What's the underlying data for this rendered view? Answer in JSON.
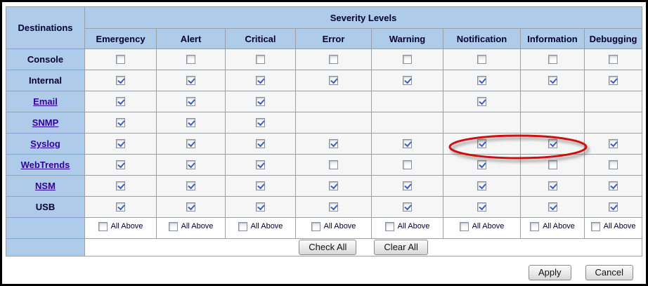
{
  "colors": {
    "header_bg": "#aecbe9",
    "cell_bg": "#f6f6f6",
    "grid": "#9aa0a6",
    "label_text": "#000033",
    "link_text": "#330099",
    "checkmark": "#3b5bbf",
    "annotation_red": "#cc1111"
  },
  "table": {
    "destinations_header": "Destinations",
    "severity_header": "Severity Levels",
    "severity_columns": [
      "Emergency",
      "Alert",
      "Critical",
      "Error",
      "Warning",
      "Notification",
      "Information",
      "Debugging"
    ],
    "rows": [
      {
        "label": "Console",
        "is_link": false,
        "cells": [
          "unchecked",
          "unchecked",
          "unchecked",
          "unchecked",
          "unchecked",
          "unchecked",
          "unchecked",
          "unchecked"
        ]
      },
      {
        "label": "Internal",
        "is_link": false,
        "cells": [
          "checked",
          "checked",
          "checked",
          "checked",
          "checked",
          "checked",
          "checked",
          "checked"
        ]
      },
      {
        "label": "Email",
        "is_link": true,
        "cells": [
          "checked",
          "checked",
          "checked",
          "empty",
          "empty",
          "checked",
          "empty",
          "empty"
        ]
      },
      {
        "label": "SNMP",
        "is_link": true,
        "cells": [
          "checked",
          "checked",
          "checked",
          "empty",
          "empty",
          "empty",
          "empty",
          "empty"
        ]
      },
      {
        "label": "Syslog",
        "is_link": true,
        "cells": [
          "checked",
          "checked",
          "checked",
          "checked",
          "checked",
          "checked",
          "checked",
          "checked"
        ]
      },
      {
        "label": "WebTrends",
        "is_link": true,
        "cells": [
          "checked",
          "checked",
          "checked",
          "unchecked",
          "unchecked",
          "checked",
          "unchecked",
          "unchecked"
        ]
      },
      {
        "label": "NSM",
        "is_link": true,
        "cells": [
          "checked",
          "checked",
          "checked",
          "checked",
          "checked",
          "checked",
          "checked",
          "checked"
        ]
      },
      {
        "label": "USB",
        "is_link": false,
        "cells": [
          "checked",
          "checked",
          "checked",
          "checked",
          "checked",
          "checked",
          "checked",
          "checked"
        ]
      }
    ],
    "all_above_label": "All Above",
    "all_above_states": [
      "unchecked",
      "unchecked",
      "unchecked",
      "unchecked",
      "unchecked",
      "unchecked",
      "unchecked",
      "unchecked"
    ],
    "check_all_label": "Check All",
    "clear_all_label": "Clear All"
  },
  "footer": {
    "apply_label": "Apply",
    "cancel_label": "Cancel"
  },
  "annotation": {
    "shape": "ellipse",
    "color": "#cc1111",
    "circled_row": "Syslog",
    "circled_columns": [
      "Notification",
      "Information"
    ]
  }
}
